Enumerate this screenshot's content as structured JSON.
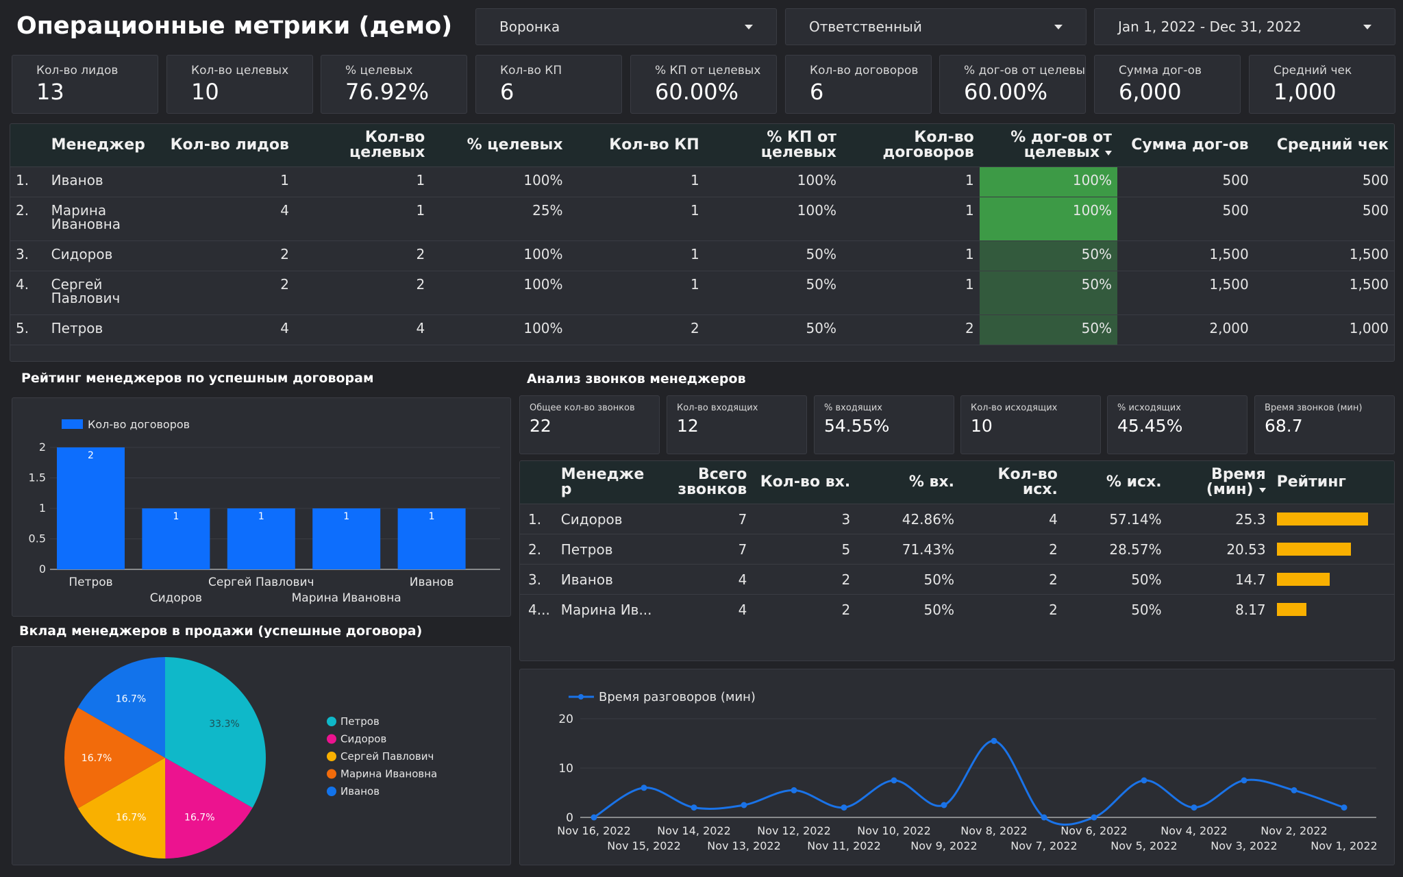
{
  "header": {
    "title": "Операционные метрики (демо)",
    "filters": [
      {
        "label": "Воронка"
      },
      {
        "label": "Ответственный"
      },
      {
        "label": "Jan 1, 2022 - Dec 31, 2022"
      }
    ]
  },
  "kpis": [
    {
      "label": "Кол-во лидов",
      "value": "13"
    },
    {
      "label": "Кол-во целевых",
      "value": "10"
    },
    {
      "label": "% целевых",
      "value": "76.92%"
    },
    {
      "label": "Кол-во КП",
      "value": "6"
    },
    {
      "label": "% КП от целевых",
      "value": "60.00%"
    },
    {
      "label": "Кол-во договоров",
      "value": "6"
    },
    {
      "label": "% дог-ов от целевых",
      "value": "60.00%"
    },
    {
      "label": "Сумма дог-ов",
      "value": "6,000"
    },
    {
      "label": "Средний чек",
      "value": "1,000"
    }
  ],
  "managers_table": {
    "headers": [
      "Менеджер",
      "Кол-во лидов",
      "Кол-во целевых",
      "% целевых",
      "Кол-во КП",
      "% КП от целевых",
      "Кол-во договоров",
      "% дог-ов от целевых",
      "Сумма дог-ов",
      "Средний чек"
    ],
    "rows": [
      {
        "idx": "1.",
        "name": "Иванов",
        "leads": "1",
        "target": "1",
        "target_pct": "100%",
        "kp": "1",
        "kp_pct": "100%",
        "contracts": "1",
        "contracts_pct": "100%",
        "sum": "500",
        "avg": "500",
        "heat": 1.0
      },
      {
        "idx": "2.",
        "name": "Марина Ивановна",
        "leads": "4",
        "target": "1",
        "target_pct": "25%",
        "kp": "1",
        "kp_pct": "100%",
        "contracts": "1",
        "contracts_pct": "100%",
        "sum": "500",
        "avg": "500",
        "heat": 1.0
      },
      {
        "idx": "3.",
        "name": "Сидоров",
        "leads": "2",
        "target": "2",
        "target_pct": "100%",
        "kp": "1",
        "kp_pct": "50%",
        "contracts": "1",
        "contracts_pct": "50%",
        "sum": "1,500",
        "avg": "1,500",
        "heat": 0.5
      },
      {
        "idx": "4.",
        "name": "Сергей Павлович",
        "leads": "2",
        "target": "2",
        "target_pct": "100%",
        "kp": "1",
        "kp_pct": "50%",
        "contracts": "1",
        "contracts_pct": "50%",
        "sum": "1,500",
        "avg": "1,500",
        "heat": 0.5
      },
      {
        "idx": "5.",
        "name": "Петров",
        "leads": "4",
        "target": "4",
        "target_pct": "100%",
        "kp": "2",
        "kp_pct": "50%",
        "contracts": "2",
        "contracts_pct": "50%",
        "sum": "2,000",
        "avg": "1,000",
        "heat": 0.5
      }
    ],
    "heat_colors": {
      "high": "#3d9a46",
      "low": "#335a3d"
    }
  },
  "rating_section": {
    "title": "Рейтинг менеджеров по успешным договорам"
  },
  "calls_section": {
    "title": "Анализ звонков менеджеров"
  },
  "pie_section": {
    "title": "Вклад менеджеров в продажи (успешные договора)"
  },
  "call_kpis": [
    {
      "label": "Общее кол-во звонков",
      "value": "22"
    },
    {
      "label": "Кол-во входящих",
      "value": "12"
    },
    {
      "label": "% входящих",
      "value": "54.55%"
    },
    {
      "label": "Кол-во исходящих",
      "value": "10"
    },
    {
      "label": "% исходящих",
      "value": "45.45%"
    },
    {
      "label": "Время звонков (мин)",
      "value": "68.7"
    }
  ],
  "calls_table": {
    "headers": [
      "Менедже р",
      "Всего звонков",
      "Кол-во вх.",
      "% вх.",
      "Кол-во исх.",
      "% исх.",
      "Время (мин)",
      "Рейтинг"
    ],
    "rows": [
      {
        "idx": "1.",
        "name": "Сидоров",
        "total": "7",
        "in": "3",
        "in_pct": "42.86%",
        "out": "4",
        "out_pct": "57.14%",
        "time": "25.3",
        "rating": 1.0
      },
      {
        "idx": "2.",
        "name": "Петров",
        "total": "7",
        "in": "5",
        "in_pct": "71.43%",
        "out": "2",
        "out_pct": "28.57%",
        "time": "20.53",
        "rating": 0.81
      },
      {
        "idx": "3.",
        "name": "Иванов",
        "total": "4",
        "in": "2",
        "in_pct": "50%",
        "out": "2",
        "out_pct": "50%",
        "time": "14.7",
        "rating": 0.58
      },
      {
        "idx": "4...",
        "name": "Марина Ив...",
        "total": "4",
        "in": "2",
        "in_pct": "50%",
        "out": "2",
        "out_pct": "50%",
        "time": "8.17",
        "rating": 0.32
      }
    ],
    "rating_color": "#f9b000"
  },
  "chart_data": [
    {
      "type": "bar",
      "legend": [
        "Кол-во договоров"
      ],
      "categories": [
        "Петров",
        "Сидоров",
        "Сергей Павлович",
        "Марина Ивановна",
        "Иванов"
      ],
      "values": [
        2,
        1,
        1,
        1,
        1
      ],
      "ylim": [
        0,
        2
      ],
      "yticks": [
        "0",
        "0.5",
        "1",
        "1.5",
        "2"
      ],
      "color": "#0d6efd"
    },
    {
      "type": "pie",
      "labels": [
        "Петров",
        "Сидоров",
        "Сергей Павлович",
        "Марина Ивановна",
        "Иванов"
      ],
      "values": [
        33.3,
        16.7,
        16.7,
        16.7,
        16.7
      ],
      "value_labels": [
        "33.3%",
        "16.7%",
        "16.7%",
        "16.7%",
        "16.7%"
      ],
      "colors": [
        "#0fb8c9",
        "#ec138f",
        "#f9b000",
        "#f26b0b",
        "#1273eb"
      ],
      "legend_position": "right"
    },
    {
      "type": "line",
      "legend": [
        "Время разговоров (мин)"
      ],
      "x": [
        "Nov 16, 2022",
        "Nov 15, 2022",
        "Nov 14, 2022",
        "Nov 13, 2022",
        "Nov 12, 2022",
        "Nov 11, 2022",
        "Nov 10, 2022",
        "Nov 9, 2022",
        "Nov 8, 2022",
        "Nov 7, 2022",
        "Nov 6, 2022",
        "Nov 5, 2022",
        "Nov 4, 2022",
        "Nov 3, 2022",
        "Nov 2, 2022",
        "Nov 1, 2022"
      ],
      "values": [
        0,
        6,
        2,
        2.5,
        5.5,
        2,
        7.5,
        2.5,
        15.5,
        0,
        0,
        7.5,
        2,
        7.5,
        5.5,
        2
      ],
      "ylim": [
        0,
        20
      ],
      "yticks": [
        "0",
        "10",
        "20"
      ],
      "color": "#1a73e8"
    }
  ]
}
